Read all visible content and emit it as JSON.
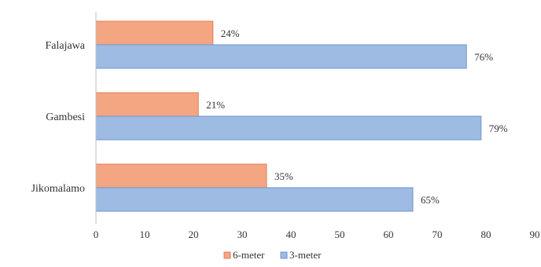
{
  "chart_data": {
    "type": "bar",
    "orientation": "horizontal",
    "categories": [
      "Falajawa",
      "Gambesi",
      "Jikomalamo"
    ],
    "series": [
      {
        "name": "6-meter",
        "values": [
          24,
          21,
          35
        ],
        "labels": [
          "24%",
          "21%",
          "35%"
        ],
        "color": "#f4a582",
        "stroke": "#e0805a"
      },
      {
        "name": "3-meter",
        "values": [
          76,
          79,
          65
        ],
        "labels": [
          "76%",
          "79%",
          "65%"
        ],
        "color": "#9dbbe3",
        "stroke": "#6f95c9"
      }
    ],
    "title": "",
    "xlabel": "",
    "ylabel": "",
    "xlim": [
      0,
      90
    ],
    "xticks": [
      "0",
      "10",
      "20",
      "30",
      "40",
      "50",
      "60",
      "70",
      "80",
      "90"
    ],
    "grid": false,
    "legend_position": "bottom"
  }
}
